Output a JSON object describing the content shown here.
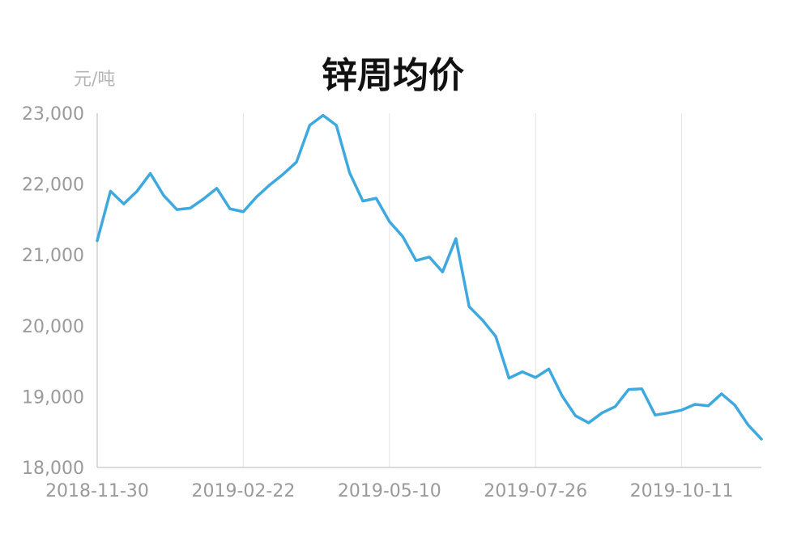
{
  "chart_data": {
    "type": "line",
    "title": "锌周均价",
    "ylabel": "元/吨",
    "xlabel": "",
    "ylim": [
      18000,
      23000
    ],
    "yticks": [
      {
        "value": 18000,
        "label": "18,000"
      },
      {
        "value": 19000,
        "label": "19,000"
      },
      {
        "value": 20000,
        "label": "20,000"
      },
      {
        "value": 21000,
        "label": "21,000"
      },
      {
        "value": 22000,
        "label": "22,000"
      },
      {
        "value": 23000,
        "label": "23,000"
      }
    ],
    "xticks": [
      {
        "index": 0,
        "label": "2018-11-30"
      },
      {
        "index": 11,
        "label": "2019-02-22"
      },
      {
        "index": 22,
        "label": "2019-05-10"
      },
      {
        "index": 33,
        "label": "2019-07-26"
      },
      {
        "index": 44,
        "label": "2019-10-11"
      }
    ],
    "grid": true,
    "legend": false,
    "color": "#3fa9df",
    "series": [
      {
        "values": [
          21200,
          21900,
          21720,
          21900,
          22150,
          21840,
          21640,
          21660,
          21790,
          21940,
          21650,
          21610,
          21820,
          21990,
          22140,
          22310,
          22830,
          22970,
          22830,
          22160,
          21760,
          21800,
          21470,
          21260,
          20920,
          20970,
          20760,
          21230,
          20270,
          20080,
          19850,
          19260,
          19350,
          19270,
          19390,
          19010,
          18730,
          18630,
          18770,
          18860,
          19100,
          19110,
          18740,
          18770,
          18810,
          18890,
          18870,
          19040,
          18880,
          18600,
          18400
        ]
      }
    ]
  }
}
